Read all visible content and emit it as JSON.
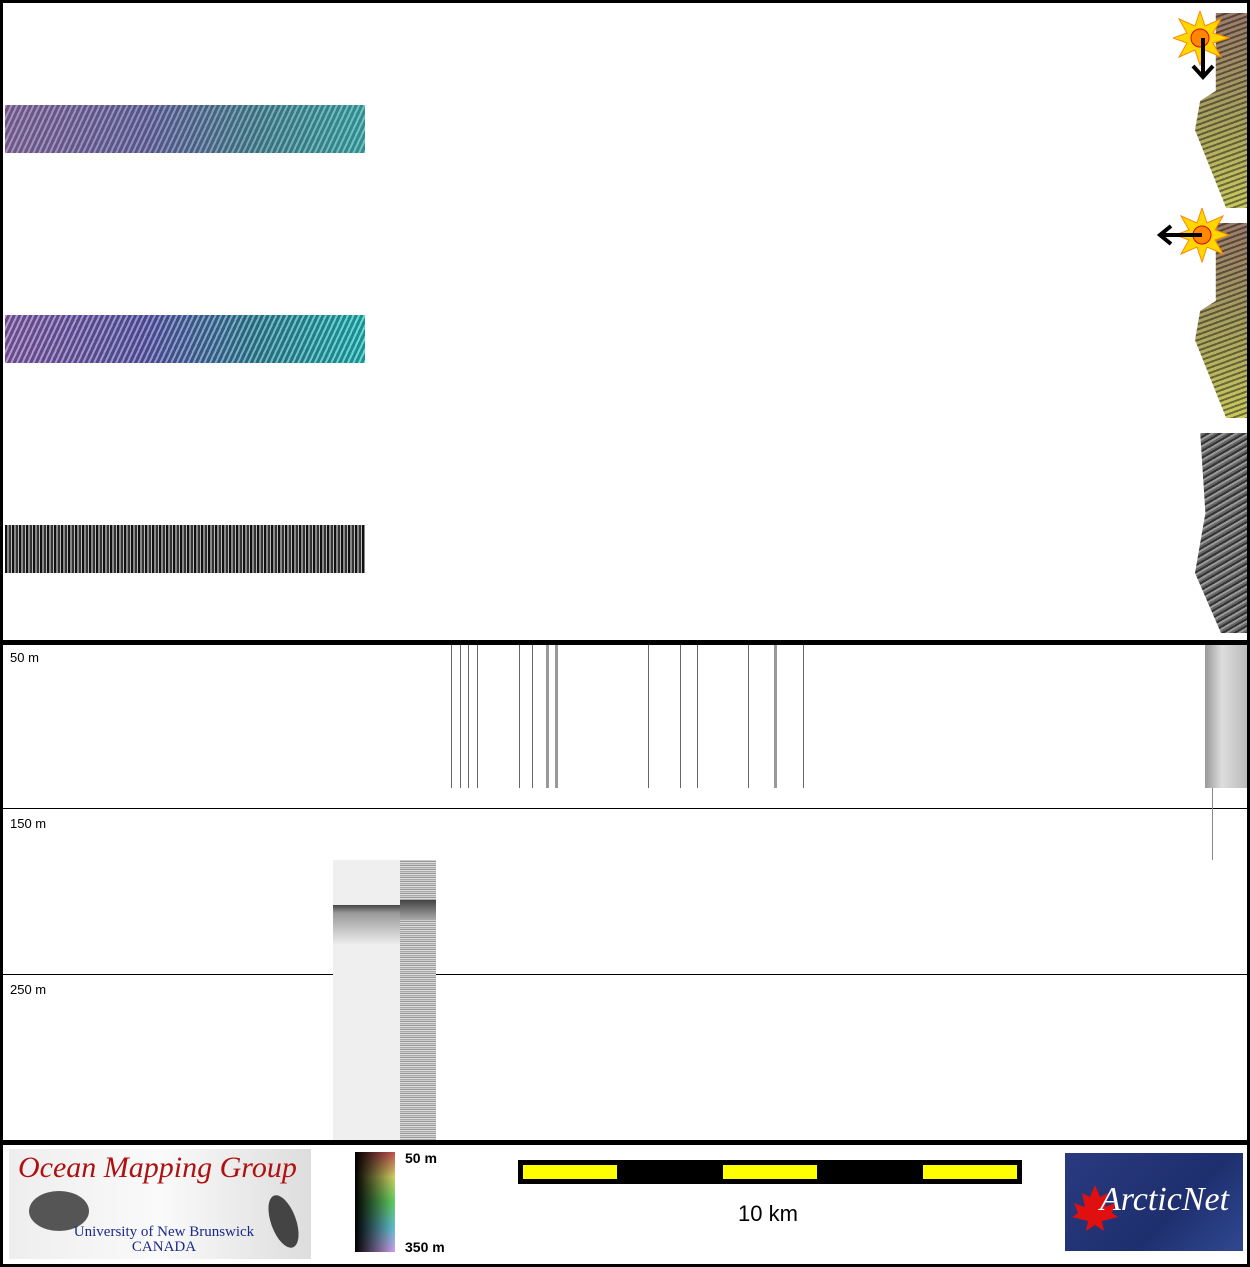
{
  "profile": {
    "depth_labels": [
      "50 m",
      "150 m",
      "250 m"
    ]
  },
  "footer": {
    "logo_left": {
      "title": "Ocean Mapping Group",
      "line1": "University of New Brunswick",
      "line2": "CANADA"
    },
    "colorbar": {
      "top_label": "50 m",
      "bottom_label": "350 m"
    },
    "scalebar": {
      "label": "10 km",
      "segment_color": "#ffff00"
    },
    "logo_right": {
      "text": "ArcticNet",
      "color": "#1e2f6e"
    }
  },
  "icons": [
    "sun-icon",
    "arrow-down-icon",
    "arrow-left-icon"
  ]
}
